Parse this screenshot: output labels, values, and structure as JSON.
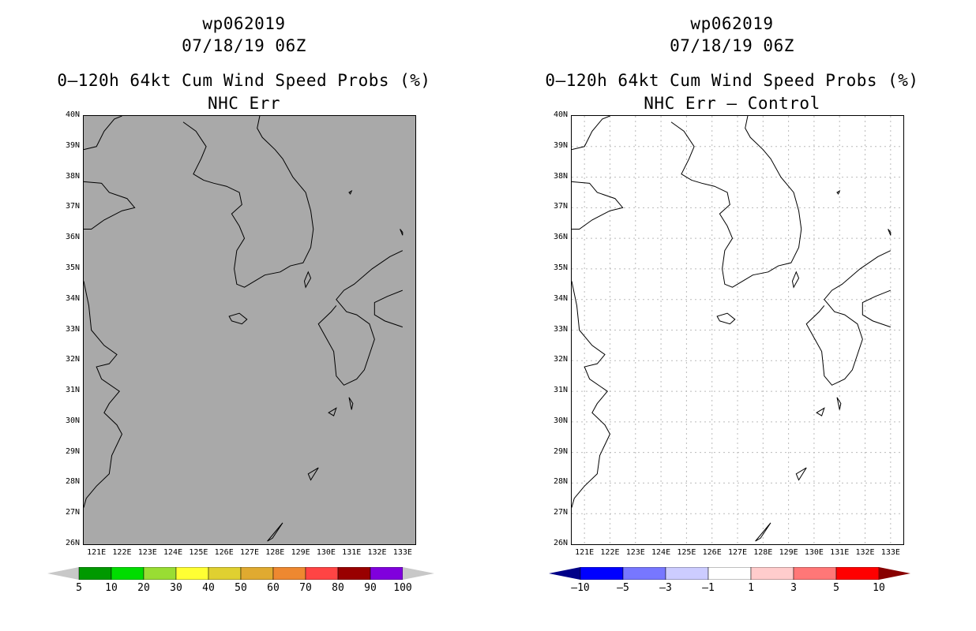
{
  "left_panel": {
    "storm_id": "wp062019",
    "datetime": "07/18/19 06Z",
    "product": "0–120h 64kt Cum Wind Speed Probs (%)",
    "subtitle": "NHC Err",
    "background": "#a9a9a9",
    "colorbar": {
      "colors": [
        "#009900",
        "#00dd00",
        "#99dd33",
        "#ffff33",
        "#e0d030",
        "#e0aa30",
        "#ee8830",
        "#ff4444",
        "#990000",
        "#8000dd"
      ],
      "end_colors": [
        "#c8c8c8",
        "#c8c8c8"
      ],
      "labels": [
        "5",
        "10",
        "20",
        "30",
        "40",
        "50",
        "60",
        "70",
        "80",
        "90",
        "100"
      ]
    }
  },
  "right_panel": {
    "storm_id": "wp062019",
    "datetime": "07/18/19 06Z",
    "product": "0–120h 64kt Cum Wind Speed Probs (%)",
    "subtitle": "NHC Err – Control",
    "background": "#ffffff",
    "colorbar": {
      "colors": [
        "#0000ff",
        "#7777ff",
        "#ccccff",
        "#ffffff",
        "#ffcccc",
        "#ff7777",
        "#ff0000"
      ],
      "end_colors": [
        "#000088",
        "#880000"
      ],
      "labels": [
        "–10",
        "–5",
        "–3",
        "–1",
        "1",
        "3",
        "5",
        "10"
      ]
    }
  },
  "lat_labels": [
    "40N",
    "39N",
    "38N",
    "37N",
    "36N",
    "35N",
    "34N",
    "33N",
    "32N",
    "31N",
    "30N",
    "29N",
    "28N",
    "27N",
    "26N"
  ],
  "lon_labels": [
    "121E",
    "122E",
    "123E",
    "124E",
    "125E",
    "126E",
    "127E",
    "128E",
    "129E",
    "130E",
    "131E",
    "132E",
    "133E"
  ]
}
